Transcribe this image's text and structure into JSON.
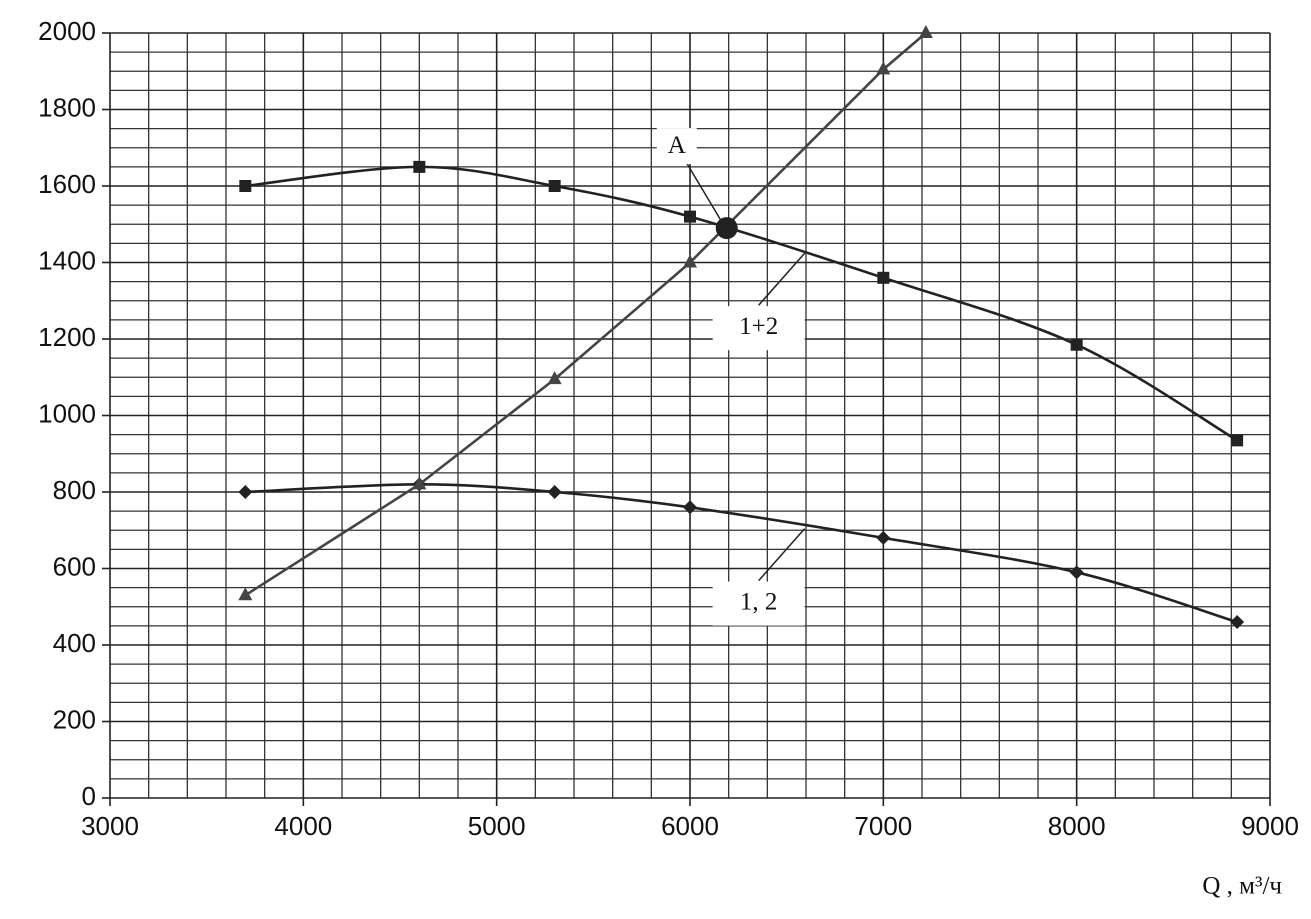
{
  "chart_data": {
    "type": "line",
    "xlabel": "Q , м³/ч",
    "xlim": [
      3000,
      9000
    ],
    "ylim": [
      0,
      2000
    ],
    "xticks": [
      3000,
      4000,
      5000,
      6000,
      7000,
      8000,
      9000
    ],
    "yticks": [
      0,
      200,
      400,
      600,
      800,
      1000,
      1200,
      1400,
      1600,
      1800,
      2000
    ],
    "xminorticks": [
      3200,
      3400,
      3600,
      3800,
      4200,
      4400,
      4600,
      4800,
      5200,
      5400,
      5600,
      5800,
      6200,
      6400,
      6600,
      6800,
      7200,
      7400,
      7600,
      7800,
      8200,
      8400,
      8600,
      8800
    ],
    "yminorticks": [
      50,
      100,
      150,
      250,
      300,
      350,
      450,
      500,
      550,
      650,
      700,
      750,
      850,
      900,
      950,
      1050,
      1100,
      1150,
      1250,
      1300,
      1350,
      1450,
      1500,
      1550,
      1650,
      1700,
      1750,
      1850,
      1900,
      1950
    ],
    "grid": true,
    "series": [
      {
        "name": "1+2",
        "color": "#222222",
        "marker": "square",
        "smooth": true,
        "x": [
          3700,
          4600,
          5300,
          6000,
          7000,
          8000,
          8830
        ],
        "values": [
          1600,
          1650,
          1600,
          1520,
          1360,
          1185,
          935
        ]
      },
      {
        "name": "1, 2",
        "color": "#222222",
        "marker": "diamond",
        "smooth": true,
        "x": [
          3700,
          4600,
          5300,
          6000,
          7000,
          8000,
          8830
        ],
        "values": [
          800,
          820,
          800,
          760,
          680,
          590,
          460
        ]
      },
      {
        "color": "#444444",
        "marker": "triangle",
        "smooth": false,
        "x": [
          3700,
          4600,
          5300,
          6000,
          7000,
          7220
        ],
        "values": [
          530,
          820,
          1095,
          1400,
          1905,
          2000
        ]
      }
    ],
    "points": [
      {
        "label": "A",
        "x": 6190,
        "y": 1490
      }
    ]
  }
}
